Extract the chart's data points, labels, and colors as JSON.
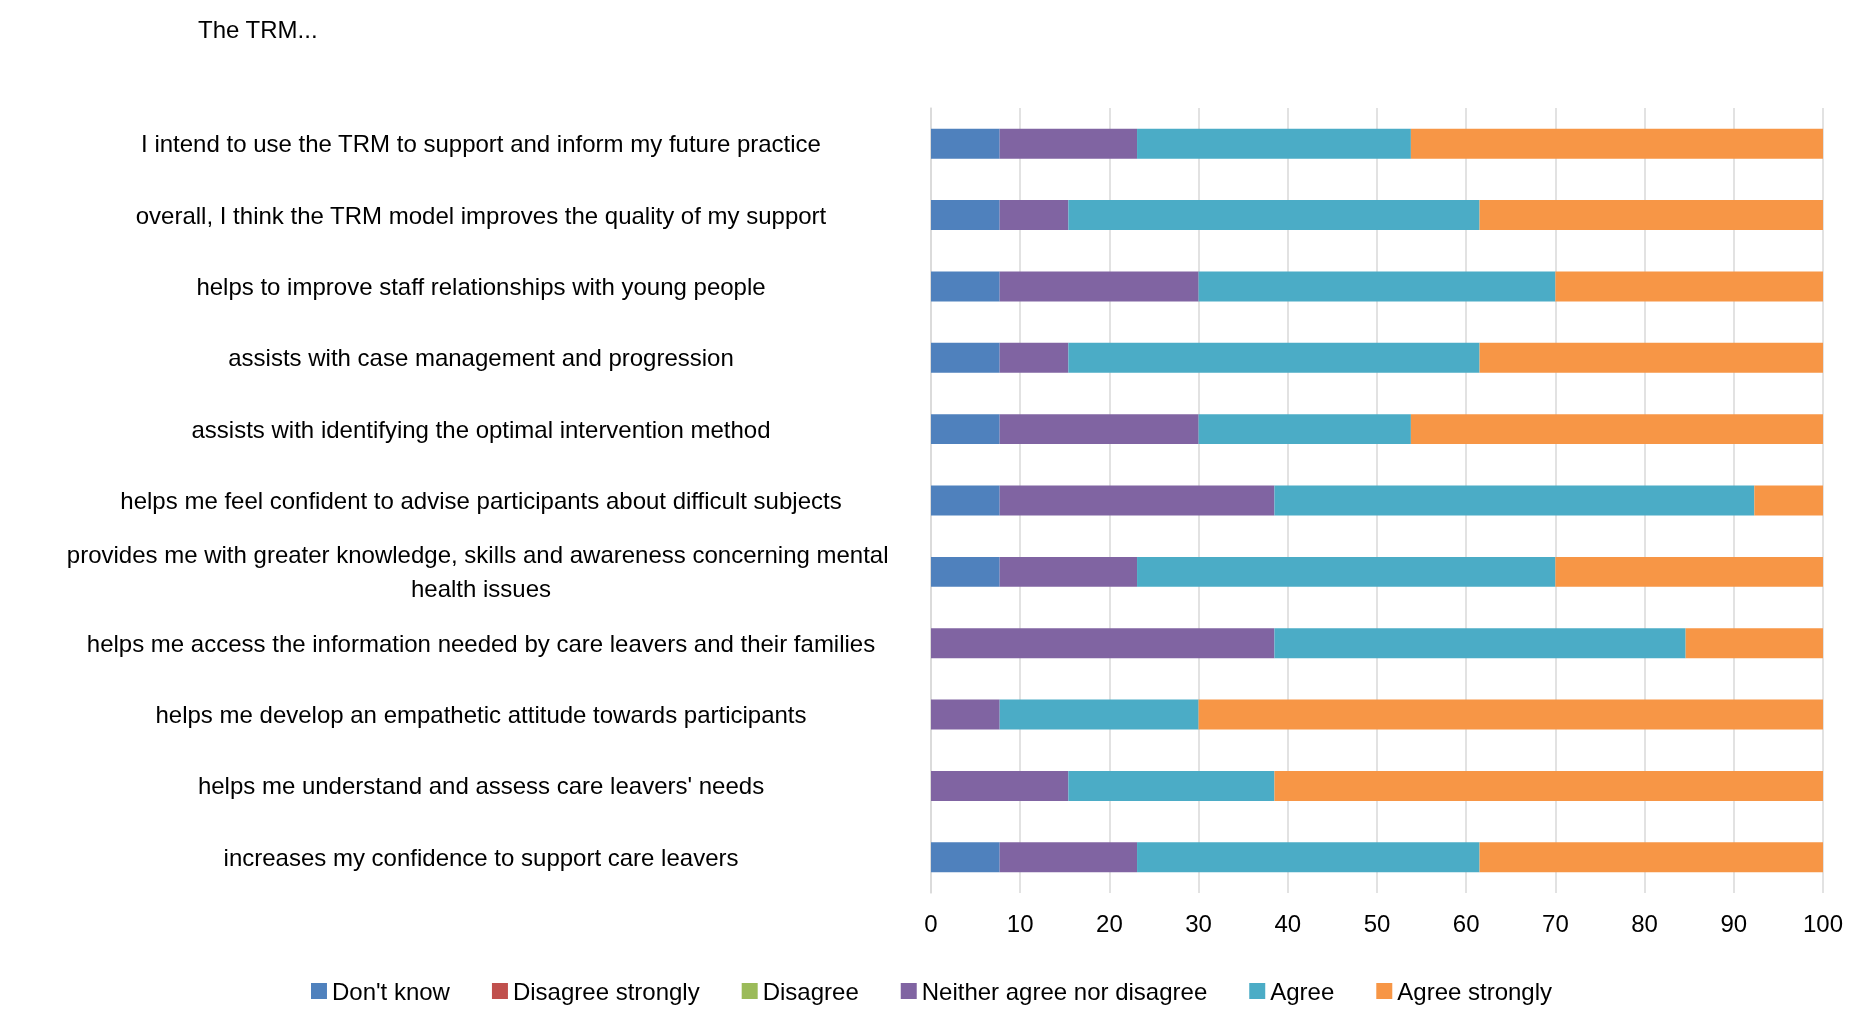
{
  "chart_data": {
    "type": "bar",
    "orientation": "horizontal",
    "stacked": true,
    "title": "The TRM...",
    "categories": [
      "I intend to use the TRM to support and inform my future practice",
      "overall, I think the TRM model improves the quality of my support",
      "helps to improve staff relationships with young people",
      "assists with case management and progression",
      "assists with identifying the optimal intervention method",
      "helps me feel confident to advise participants about difficult subjects",
      "provides me with greater knowledge, skills and awareness concerning mental health issues",
      "helps me access the information needed by care leavers and their families",
      "helps me develop an empathetic attitude towards participants",
      "helps me understand and assess care leavers' needs",
      "increases my confidence to support care leavers"
    ],
    "series": [
      {
        "name": "Don't know",
        "color": "#4f81bd",
        "values": [
          7.7,
          7.7,
          7.7,
          7.7,
          7.7,
          7.7,
          7.7,
          0,
          0,
          0,
          7.7
        ]
      },
      {
        "name": "Disagree strongly",
        "color": "#c0504d",
        "values": [
          0,
          0,
          0,
          0,
          0,
          0,
          0,
          0,
          0,
          0,
          0
        ]
      },
      {
        "name": "Disagree",
        "color": "#9bbb59",
        "values": [
          0,
          0,
          0,
          0,
          0,
          0,
          0,
          0,
          0,
          0,
          0
        ]
      },
      {
        "name": "Neither agree nor disagree",
        "color": "#8064a2",
        "values": [
          15.4,
          7.7,
          22.3,
          7.7,
          22.3,
          30.8,
          15.4,
          38.5,
          7.7,
          15.4,
          15.4
        ]
      },
      {
        "name": "Agree",
        "color": "#4bacc6",
        "values": [
          30.7,
          46.1,
          40,
          46.1,
          23.8,
          53.8,
          46.9,
          46.1,
          22.3,
          23.1,
          38.4
        ]
      },
      {
        "name": "Agree strongly",
        "color": "#f79646",
        "values": [
          46.2,
          38.5,
          30,
          38.5,
          46.2,
          7.7,
          30,
          15.4,
          70,
          61.5,
          38.5
        ]
      }
    ],
    "xlim": [
      0,
      100
    ],
    "xticks": [
      0,
      10,
      20,
      30,
      40,
      50,
      60,
      70,
      80,
      90,
      100
    ],
    "grid": "x",
    "legend": "bottom"
  }
}
